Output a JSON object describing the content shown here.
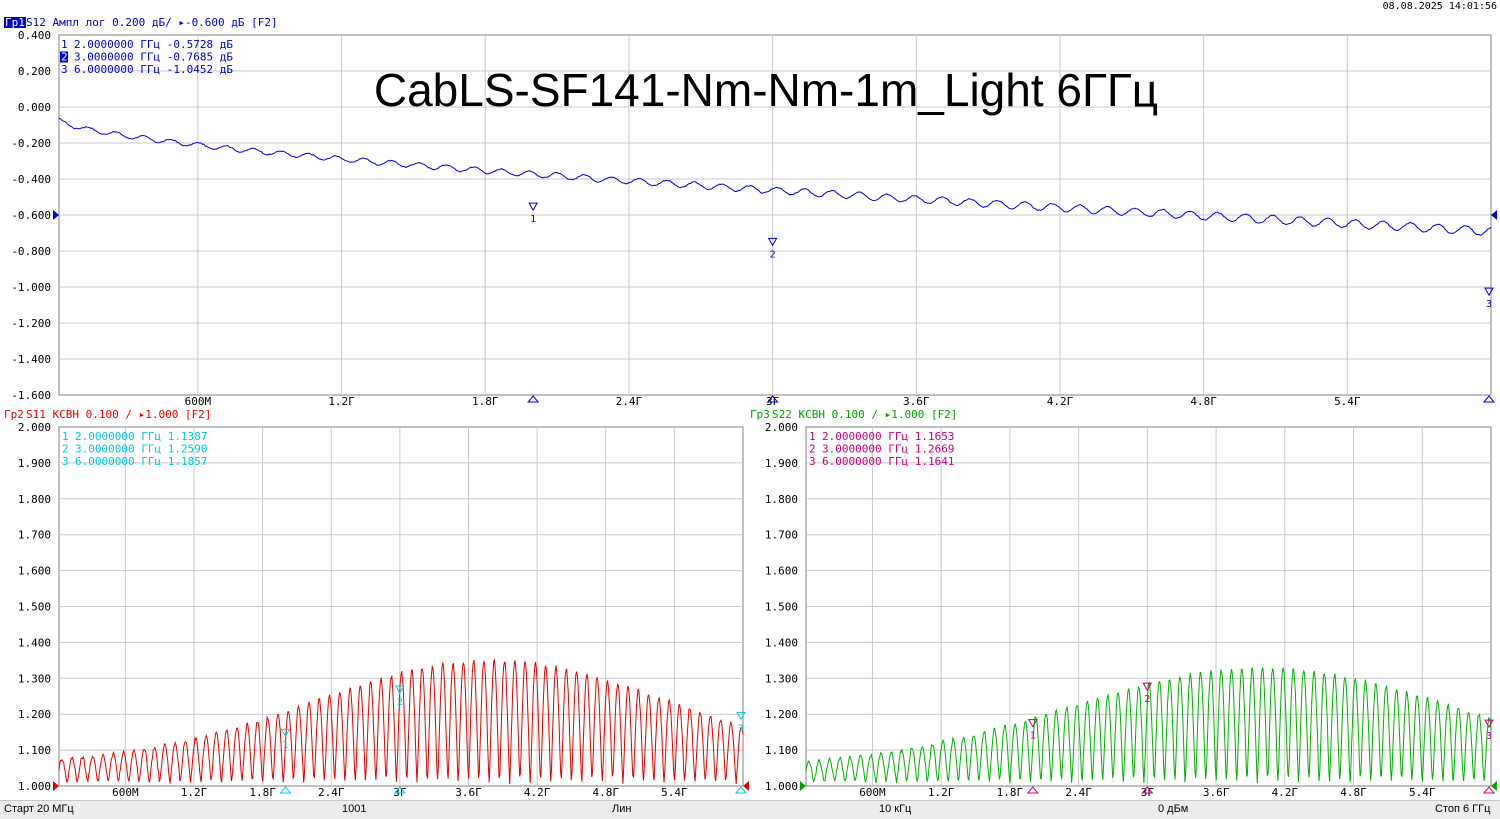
{
  "datetime": "08.08.2025 14:01:56",
  "overlay_title": "CabLS-SF141-Nm-Nm-1m_Light 6ГГц",
  "colors": {
    "trace1": "#0000cc",
    "trace2": "#e00000",
    "trace3": "#00b000",
    "markers1": "#0000cc",
    "markers2": "#00c8d8",
    "markers3": "#c0007a",
    "grid": "#c8c8c8",
    "ref_arrow": "#0000cc"
  },
  "status": {
    "start": "Старт 20 МГц",
    "points": "1001",
    "sweep": "Лин",
    "ifbw": "10 кГц",
    "power": "0 дБм",
    "stop": "Стоп 6 ГГц"
  },
  "chart_data": [
    {
      "type": "line",
      "header": {
        "tag": "Гр1",
        "text": " S12  Ампл лог 0.200 дБ/ ▸-0.600 дБ [F2]"
      },
      "param": "S12",
      "format": "Ампл лог",
      "scale_per_div": 0.2,
      "ref_value": -0.6,
      "unit": "дБ",
      "x_range": [
        0.02,
        6.0
      ],
      "x_unit": "ГГц",
      "ylim": [
        -1.6,
        0.4
      ],
      "y_ticks": [
        "0.400",
        "0.200",
        "0.000",
        "-0.200",
        "-0.400",
        "-0.600",
        "-0.800",
        "-1.000",
        "-1.200",
        "-1.400",
        "-1.600"
      ],
      "x_ticks": [
        "600М",
        "1.2Г",
        "1.8Г",
        "2.4Г",
        "3Г",
        "3.6Г",
        "4.2Г",
        "4.8Г",
        "5.4Г"
      ],
      "marker_table": [
        {
          "num": "1",
          "text": "2.0000000 ГГц -0.5728 дБ"
        },
        {
          "num": "2",
          "text": "3.0000000 ГГц -0.7685 дБ"
        },
        {
          "num": "3",
          "text": "6.0000000 ГГц -1.0452 дБ"
        }
      ],
      "markers": [
        {
          "label": "1",
          "x": 2.0,
          "y": -0.5728
        },
        {
          "label": "2",
          "x": 3.0,
          "y": -0.7685
        },
        {
          "label": "3",
          "x": 6.0,
          "y": -1.0452
        }
      ],
      "series": [
        {
          "model": "loss",
          "base": [
            -0.05,
            -0.183,
            -0.2,
            -0.1
          ],
          "ripple_amp": 0.012,
          "ripple_amp_end": 0.025,
          "ripple_period_ghz": 0.115,
          "noise": 0.006
        }
      ]
    },
    {
      "type": "line",
      "header": {
        "tag": "Гр2",
        "text": " S11  КСВН 0.100 / ▸1.000  [F2]"
      },
      "param": "S11",
      "format": "КСВН",
      "scale_per_div": 0.1,
      "ref_value": 1.0,
      "x_range": [
        0.02,
        6.0
      ],
      "x_unit": "ГГц",
      "ylim": [
        1.0,
        2.0
      ],
      "y_ticks": [
        "2.000",
        "1.900",
        "1.800",
        "1.700",
        "1.600",
        "1.500",
        "1.400",
        "1.300",
        "1.200",
        "1.100",
        "1.000"
      ],
      "x_ticks": [
        "600М",
        "1.2Г",
        "1.8Г",
        "2.4Г",
        "3Г",
        "3.6Г",
        "4.2Г",
        "4.8Г",
        "5.4Г"
      ],
      "marker_table": [
        {
          "num": "1",
          "text": "2.0000000 ГГц  1.1387"
        },
        {
          "num": "2",
          "text": "3.0000000 ГГц  1.2590"
        },
        {
          "num": "3",
          "text": "6.0000000 ГГц  1.1857"
        }
      ],
      "markers": [
        {
          "label": "1",
          "x": 2.0,
          "y": 1.1387
        },
        {
          "label": "2",
          "x": 3.0,
          "y": 1.259
        },
        {
          "label": "3",
          "x": 6.0,
          "y": 1.1857
        }
      ],
      "series": [
        {
          "model": "vswr",
          "floor": 1.01,
          "peak_start": 1.06,
          "peak_max": 1.35,
          "peak_center_ghz": 3.8,
          "peak_width_ghz": 2.2,
          "ripple_period_ghz": 0.09
        }
      ]
    },
    {
      "type": "line",
      "header": {
        "tag": "Гр3",
        "text": " S22  КСВН 0.100 / ▸1.000  [F2]"
      },
      "param": "S22",
      "format": "КСВН",
      "scale_per_div": 0.1,
      "ref_value": 1.0,
      "x_range": [
        0.02,
        6.0
      ],
      "x_unit": "ГГц",
      "ylim": [
        1.0,
        2.0
      ],
      "y_ticks": [
        "2.000",
        "1.900",
        "1.800",
        "1.700",
        "1.600",
        "1.500",
        "1.400",
        "1.300",
        "1.200",
        "1.100",
        "1.000"
      ],
      "x_ticks": [
        "600М",
        "1.2Г",
        "1.8Г",
        "2.4Г",
        "3Г",
        "3.6Г",
        "4.2Г",
        "4.8Г",
        "5.4Г"
      ],
      "marker_table": [
        {
          "num": "1",
          "text": "2.0000000 ГГц  1.1653"
        },
        {
          "num": "2",
          "text": "3.0000000 ГГц  1.2669"
        },
        {
          "num": "3",
          "text": "6.0000000 ГГц  1.1641"
        }
      ],
      "markers": [
        {
          "label": "1",
          "x": 2.0,
          "y": 1.1653
        },
        {
          "label": "2",
          "x": 3.0,
          "y": 1.2669
        },
        {
          "label": "3",
          "x": 6.0,
          "y": 1.1641
        }
      ],
      "series": [
        {
          "model": "vswr",
          "floor": 1.01,
          "peak_start": 1.05,
          "peak_max": 1.33,
          "peak_center_ghz": 4.0,
          "peak_width_ghz": 2.4,
          "ripple_period_ghz": 0.09
        }
      ]
    }
  ]
}
